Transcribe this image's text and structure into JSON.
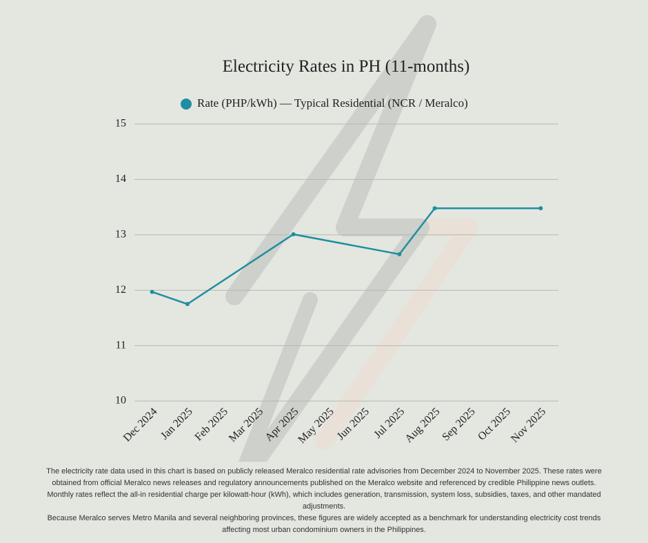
{
  "chart_data": {
    "type": "line",
    "title": "Electricity Rates in PH (11-months)",
    "categories": [
      "Dec 2024",
      "Jan 2025",
      "Feb 2025",
      "Mar 2025",
      "Apr 2025",
      "May 2025",
      "Jun 2025",
      "Jul 2025",
      "Aug 2025",
      "Sep 2025",
      "Oct 2025",
      "Nov 2025"
    ],
    "series": [
      {
        "name": "Rate (PHP/kWh) — Typical Residential (NCR / Meralco)",
        "color": "#1e8ea0",
        "x": [
          "Dec 2024",
          "Jan 2025",
          "Apr 2025",
          "Jul 2025",
          "Aug 2025",
          "Nov 2025"
        ],
        "values": [
          11.97,
          11.75,
          13.01,
          12.65,
          13.48,
          13.48
        ]
      }
    ],
    "ylim": [
      10,
      15
    ],
    "yticks": [
      10,
      11,
      12,
      13,
      14,
      15
    ],
    "grid": true,
    "legend": "top"
  },
  "footnote": [
    "The electricity rate data used in this chart is based on publicly released Meralco residential rate advisories from December 2024 to November 2025. These rates were obtained from official Meralco news releases and regulatory announcements published on the Meralco website and referenced by credible Philippine news outlets. Monthly rates reflect the all-in residential charge per kilowatt-hour (kWh), which includes generation, transmission, system loss, subsidies, taxes, and other mandated adjustments.",
    "Because Meralco serves Metro Manila and several neighboring provinces, these figures are widely accepted as a benchmark for understanding electricity cost trends affecting most urban condominium owners in the Philippines."
  ]
}
